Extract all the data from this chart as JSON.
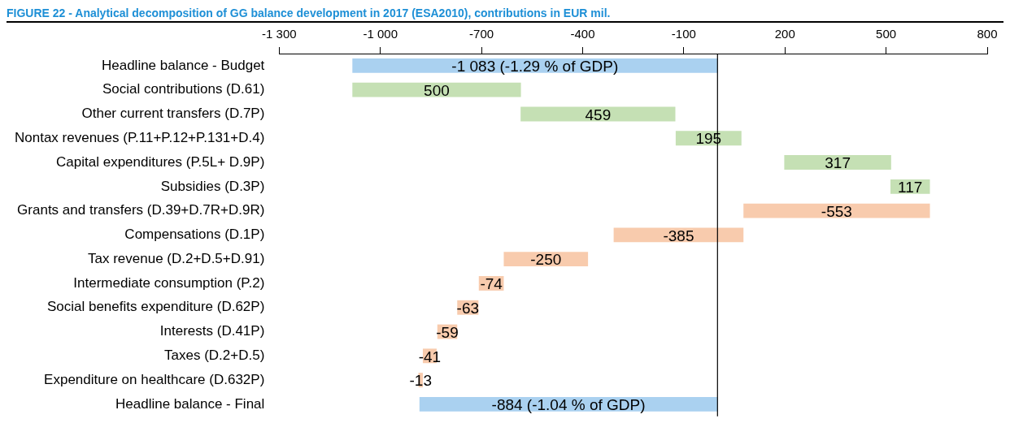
{
  "chart_data": {
    "type": "bar",
    "orientation": "horizontal",
    "title": "FIGURE 22 - Analytical decomposition of GG balance development in 2017 (ESA2010), contributions in EUR mil.",
    "categories": [
      "Headline balance - Budget",
      "Social contributions (D.61)",
      "Other current transfers (D.7P)",
      "Nontax revenues (P.11+P.12+P.131+D.4)",
      "Capital expenditures (P.5L+ D.9P)",
      "Subsidies (D.3P)",
      "Grants and transfers (D.39+D.7R+D.9R)",
      "Compensations (D.1P)",
      "Tax revenue (D.2+D.5+D.91)",
      "Intermediate consumption (P.2)",
      "Social benefits expenditure (D.62P)",
      "Interests (D.41P)",
      "Taxes (D.2+D.5)",
      "Expenditure on healthcare (D.632P)",
      "Headline balance - Final"
    ],
    "values": [
      -1083,
      500,
      459,
      195,
      317,
      117,
      -553,
      -385,
      -250,
      -74,
      -63,
      -59,
      -41,
      -13,
      -884
    ],
    "base": [
      0,
      -1083,
      -584,
      -124,
      198,
      513,
      630,
      77,
      -384,
      -634,
      -709,
      -772,
      -833,
      -874,
      0
    ],
    "colors": [
      "#aad1f0",
      "#c5e0b4",
      "#c5e0b4",
      "#c5e0b4",
      "#c5e0b4",
      "#c5e0b4",
      "#f8cbad",
      "#f8cbad",
      "#f8cbad",
      "#f8cbad",
      "#f8cbad",
      "#f8cbad",
      "#f8cbad",
      "#f8cbad",
      "#aad1f0"
    ],
    "value_labels": [
      "-1 083 (-1.29 % of GDP)",
      "500",
      "459",
      "195",
      "317",
      "117",
      "-553",
      "-385",
      "-250",
      "-74",
      "-63",
      "-59",
      "-41",
      "-13",
      "-884 (-1.04 % of GDP)"
    ],
    "xlim": [
      -1300,
      800
    ],
    "xticks": [
      {
        "value": -1300,
        "label": "-1 300"
      },
      {
        "value": -1000,
        "label": "-1 000"
      },
      -700,
      -400,
      -100,
      200,
      500,
      800
    ],
    "ref_lines": [
      {
        "axis": "x",
        "value": 0,
        "color": "#000000"
      }
    ],
    "grid": false,
    "legend": false
  }
}
